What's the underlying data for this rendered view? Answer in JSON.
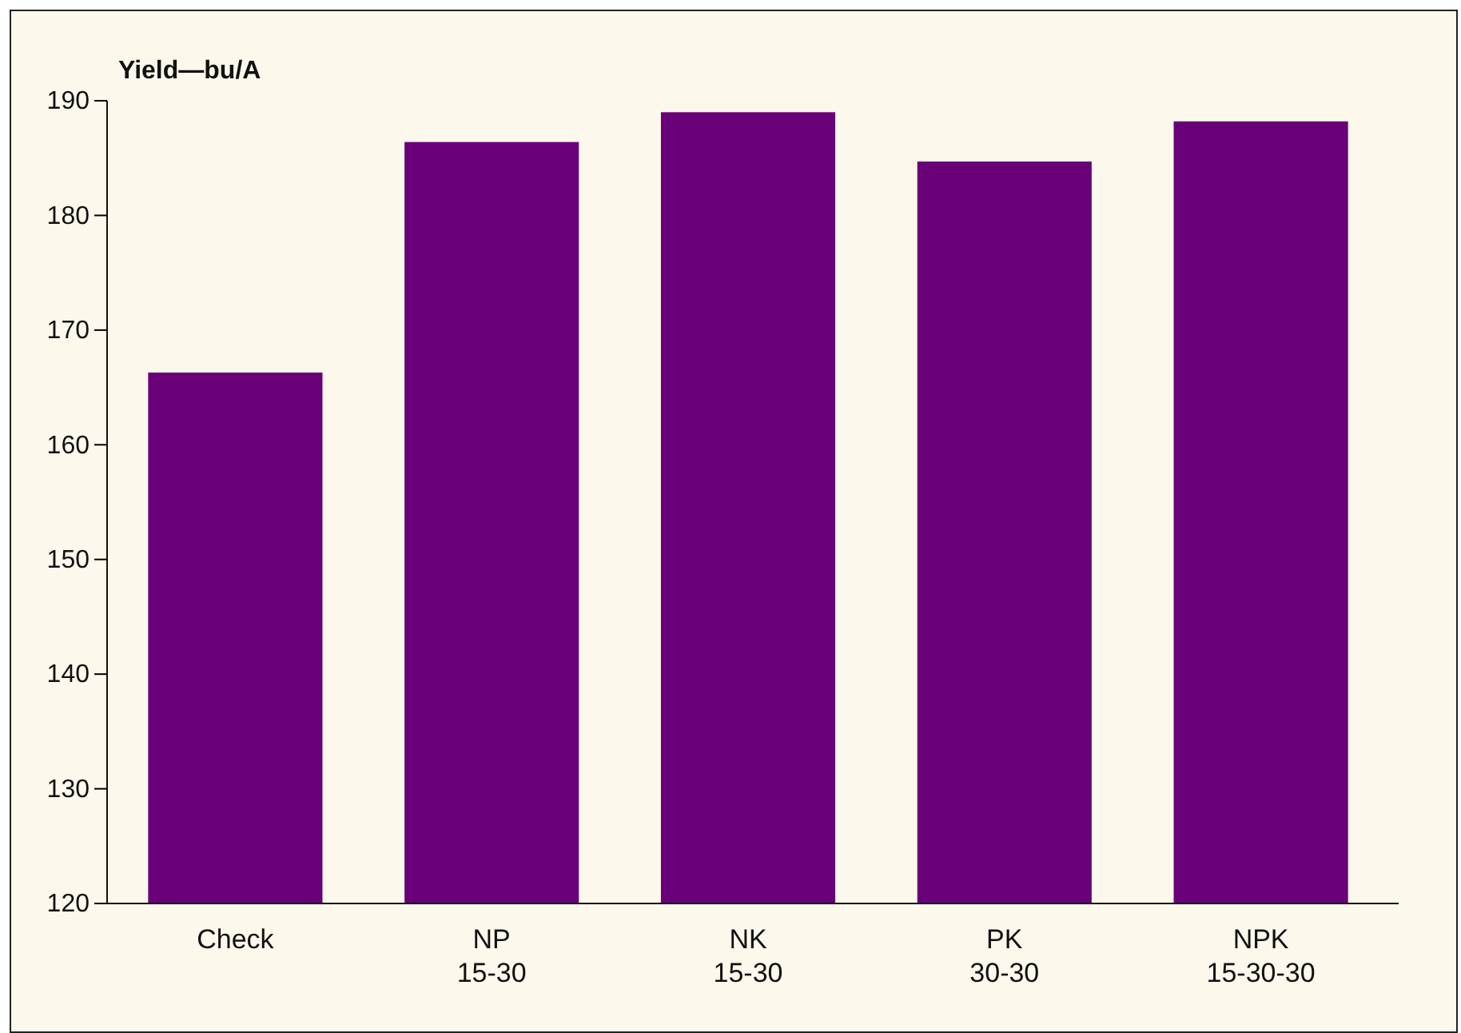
{
  "chart_data": {
    "type": "bar",
    "ylabel": "Yield—bu/A",
    "categories": [
      "Check",
      "NP\n15-30",
      "NK\n15-30",
      "PK\n30-30",
      "NPK\n15-30-30"
    ],
    "values": [
      166.3,
      186.4,
      189.0,
      184.7,
      188.2
    ],
    "color": "#6a0077",
    "ylim": [
      120,
      190
    ],
    "yticks": [
      120,
      130,
      140,
      150,
      160,
      170,
      180,
      190
    ],
    "grid": false
  }
}
